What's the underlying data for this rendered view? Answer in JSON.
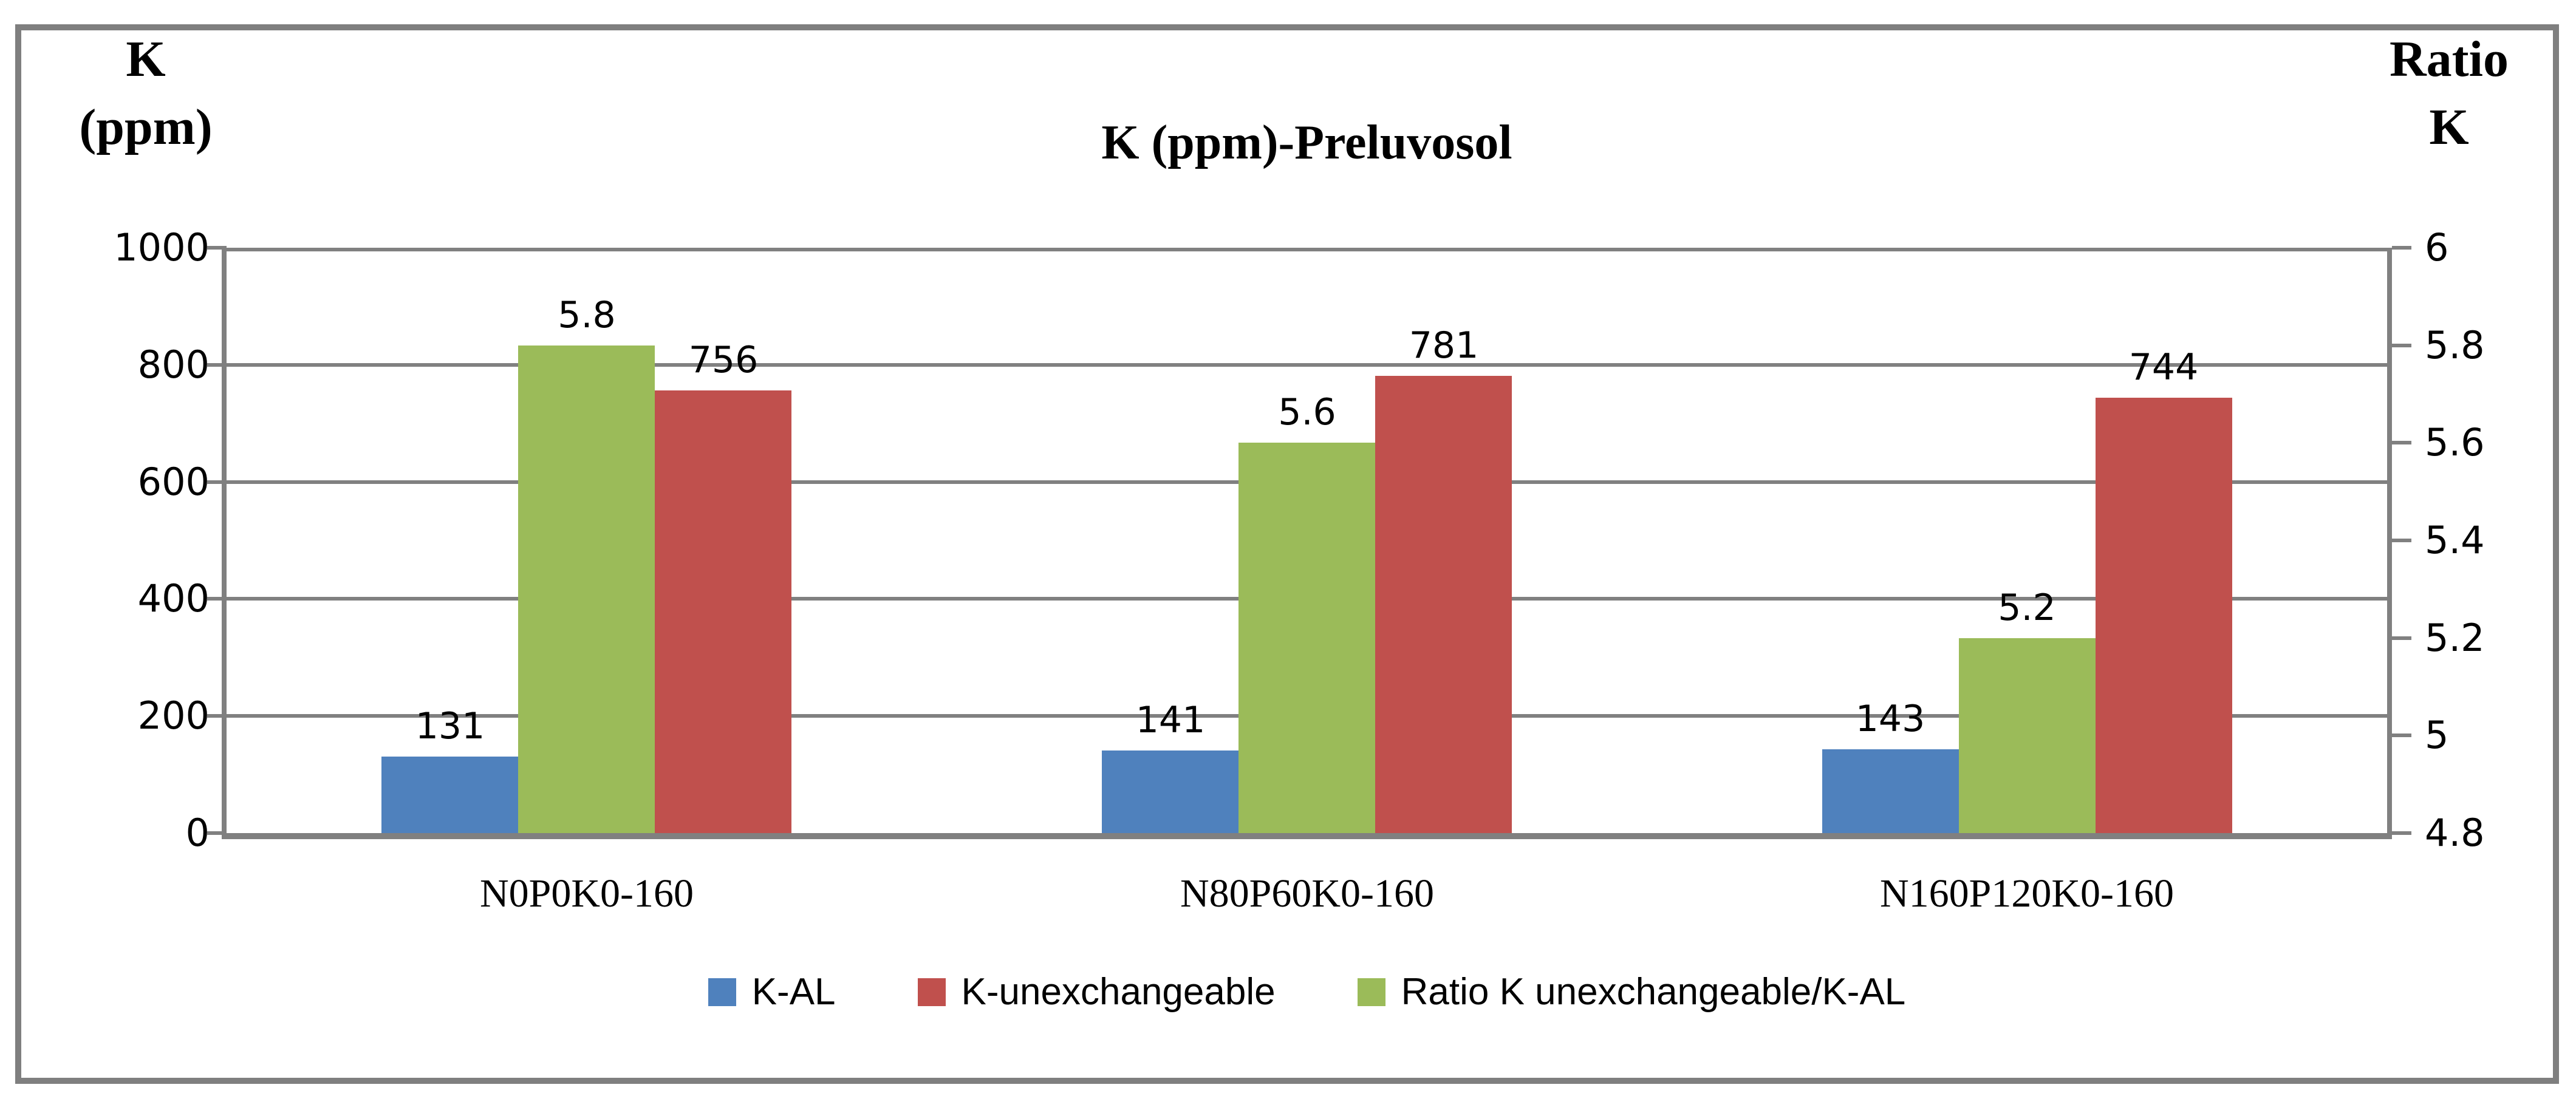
{
  "chart_data": {
    "type": "bar",
    "title": "K (ppm)-Preluvosol",
    "left_axis": {
      "title_lines": [
        "K",
        "(ppm)"
      ],
      "min": 0,
      "max": 1000,
      "ticks": [
        "1000",
        "800",
        "600",
        "400",
        "200",
        "0"
      ]
    },
    "right_axis": {
      "title_lines": [
        "Ratio",
        "K"
      ],
      "min": 4.8,
      "max": 6,
      "ticks": [
        "6",
        "5.8",
        "5.6",
        "5.4",
        "5.2",
        "5",
        "4.8"
      ]
    },
    "categories": [
      "N0P0K0-160",
      "N80P60K0-160",
      "N160P120K0-160"
    ],
    "series": [
      {
        "name": "K-AL",
        "axis": "left",
        "color": "#4F81BD",
        "values": [
          131,
          141,
          143
        ],
        "labels": [
          "131",
          "141",
          "143"
        ]
      },
      {
        "name": "Ratio K unexchangeable/K-AL",
        "axis": "right",
        "color": "#9BBB59",
        "values": [
          5.8,
          5.6,
          5.2
        ],
        "labels": [
          "5.8",
          "5.6",
          "5.2"
        ]
      },
      {
        "name": "K-unexchangeable",
        "axis": "left",
        "color": "#C0504D",
        "values": [
          756,
          781,
          744
        ],
        "labels": [
          "756",
          "781",
          "744"
        ]
      }
    ],
    "legend_items": [
      {
        "label": "K-AL",
        "color": "#4F81BD"
      },
      {
        "label": "K-unexchangeable",
        "color": "#C0504D"
      },
      {
        "label": "Ratio K unexchangeable/K-AL",
        "color": "#9BBB59"
      }
    ],
    "grid": true,
    "legend_position": "bottom"
  },
  "colors": {
    "axis_gray": "#808080",
    "frame_gray": "#7F7F7F",
    "background": "#FFFFFF",
    "text": "#000000"
  }
}
